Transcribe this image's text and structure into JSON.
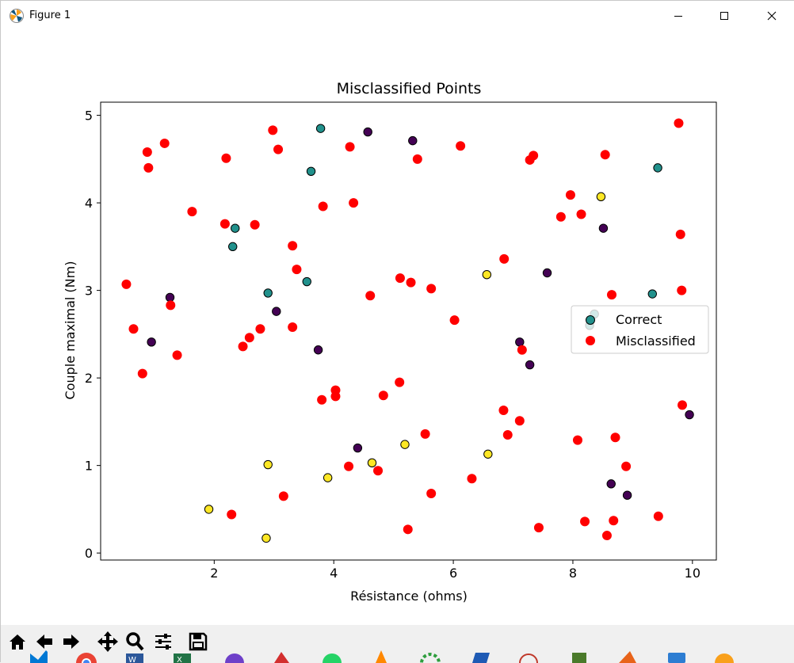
{
  "window": {
    "title": "Figure 1",
    "icon": "matplotlib-logo-icon"
  },
  "toolbar": {
    "items": [
      "home-icon",
      "back-icon",
      "forward-icon",
      "pan-icon",
      "zoom-icon",
      "configure-subplots-icon",
      "save-icon"
    ]
  },
  "chart_data": {
    "type": "scatter",
    "title": "Misclassified Points",
    "xlabel": "Résistance (ohms)",
    "ylabel": "Couple maximal (Nm)",
    "xlim": [
      0.1,
      10.4
    ],
    "ylim": [
      -0.08,
      5.15
    ],
    "xticks": [
      2,
      4,
      6,
      8,
      10
    ],
    "yticks": [
      0,
      1,
      2,
      3,
      4,
      5
    ],
    "grid": false,
    "legend_position": "right",
    "legend": [
      {
        "label": "Correct",
        "color": "#21918c"
      },
      {
        "label": "Misclassified",
        "color": "#ff0000"
      }
    ],
    "class_colors": {
      "purple": "#440154",
      "teal": "#21918c",
      "yellow": "#fde725"
    },
    "series": [
      {
        "name": "Correct",
        "points": [
          {
            "x": 2.35,
            "y": 3.71,
            "c": "teal"
          },
          {
            "x": 2.31,
            "y": 3.5,
            "c": "teal"
          },
          {
            "x": 3.78,
            "y": 4.85,
            "c": "teal"
          },
          {
            "x": 3.62,
            "y": 4.36,
            "c": "teal"
          },
          {
            "x": 2.9,
            "y": 2.97,
            "c": "teal"
          },
          {
            "x": 3.55,
            "y": 3.1,
            "c": "teal"
          },
          {
            "x": 9.42,
            "y": 4.4,
            "c": "teal"
          },
          {
            "x": 9.33,
            "y": 2.96,
            "c": "teal"
          },
          {
            "x": 8.28,
            "y": 2.6,
            "c": "teal"
          },
          {
            "x": 8.36,
            "y": 2.73,
            "c": "teal"
          },
          {
            "x": 4.57,
            "y": 4.81,
            "c": "purple"
          },
          {
            "x": 5.32,
            "y": 4.71,
            "c": "purple"
          },
          {
            "x": 8.51,
            "y": 3.71,
            "c": "purple"
          },
          {
            "x": 7.57,
            "y": 3.2,
            "c": "purple"
          },
          {
            "x": 1.26,
            "y": 2.92,
            "c": "purple"
          },
          {
            "x": 0.95,
            "y": 2.41,
            "c": "purple"
          },
          {
            "x": 3.04,
            "y": 2.76,
            "c": "purple"
          },
          {
            "x": 3.74,
            "y": 2.32,
            "c": "purple"
          },
          {
            "x": 7.11,
            "y": 2.41,
            "c": "purple"
          },
          {
            "x": 7.28,
            "y": 2.15,
            "c": "purple"
          },
          {
            "x": 9.95,
            "y": 1.58,
            "c": "purple"
          },
          {
            "x": 4.4,
            "y": 1.2,
            "c": "purple"
          },
          {
            "x": 8.64,
            "y": 0.79,
            "c": "purple"
          },
          {
            "x": 8.91,
            "y": 0.66,
            "c": "purple"
          },
          {
            "x": 8.47,
            "y": 4.07,
            "c": "yellow"
          },
          {
            "x": 6.56,
            "y": 3.18,
            "c": "yellow"
          },
          {
            "x": 5.19,
            "y": 1.24,
            "c": "yellow"
          },
          {
            "x": 4.64,
            "y": 1.03,
            "c": "yellow"
          },
          {
            "x": 6.58,
            "y": 1.13,
            "c": "yellow"
          },
          {
            "x": 2.9,
            "y": 1.01,
            "c": "yellow"
          },
          {
            "x": 3.9,
            "y": 0.86,
            "c": "yellow"
          },
          {
            "x": 1.91,
            "y": 0.5,
            "c": "yellow"
          },
          {
            "x": 2.87,
            "y": 0.17,
            "c": "yellow"
          }
        ]
      },
      {
        "name": "Misclassified",
        "points": [
          {
            "x": 0.88,
            "y": 4.58
          },
          {
            "x": 1.17,
            "y": 4.68
          },
          {
            "x": 0.9,
            "y": 4.4
          },
          {
            "x": 2.2,
            "y": 4.51
          },
          {
            "x": 2.98,
            "y": 4.83
          },
          {
            "x": 3.07,
            "y": 4.61
          },
          {
            "x": 4.27,
            "y": 4.64
          },
          {
            "x": 5.4,
            "y": 4.5
          },
          {
            "x": 6.12,
            "y": 4.65
          },
          {
            "x": 7.34,
            "y": 4.54
          },
          {
            "x": 7.28,
            "y": 4.49
          },
          {
            "x": 8.54,
            "y": 4.55
          },
          {
            "x": 9.77,
            "y": 4.91
          },
          {
            "x": 1.63,
            "y": 3.9
          },
          {
            "x": 2.18,
            "y": 3.76
          },
          {
            "x": 2.68,
            "y": 3.75
          },
          {
            "x": 3.82,
            "y": 3.96
          },
          {
            "x": 4.33,
            "y": 4.0
          },
          {
            "x": 7.96,
            "y": 4.09
          },
          {
            "x": 7.8,
            "y": 3.84
          },
          {
            "x": 8.14,
            "y": 3.87
          },
          {
            "x": 9.8,
            "y": 3.64
          },
          {
            "x": 3.31,
            "y": 3.51
          },
          {
            "x": 3.38,
            "y": 3.24
          },
          {
            "x": 6.85,
            "y": 3.36
          },
          {
            "x": 0.53,
            "y": 3.07
          },
          {
            "x": 5.11,
            "y": 3.14
          },
          {
            "x": 5.29,
            "y": 3.09
          },
          {
            "x": 5.63,
            "y": 3.02
          },
          {
            "x": 9.82,
            "y": 3.0
          },
          {
            "x": 4.61,
            "y": 2.94
          },
          {
            "x": 1.27,
            "y": 2.83
          },
          {
            "x": 8.65,
            "y": 2.95
          },
          {
            "x": 6.02,
            "y": 2.66
          },
          {
            "x": 0.65,
            "y": 2.56
          },
          {
            "x": 2.77,
            "y": 2.56
          },
          {
            "x": 3.31,
            "y": 2.58
          },
          {
            "x": 2.59,
            "y": 2.46
          },
          {
            "x": 2.48,
            "y": 2.36
          },
          {
            "x": 7.15,
            "y": 2.32
          },
          {
            "x": 1.38,
            "y": 2.26
          },
          {
            "x": 0.8,
            "y": 2.05
          },
          {
            "x": 5.1,
            "y": 1.95
          },
          {
            "x": 4.03,
            "y": 1.86
          },
          {
            "x": 4.03,
            "y": 1.79
          },
          {
            "x": 4.83,
            "y": 1.8
          },
          {
            "x": 3.8,
            "y": 1.75
          },
          {
            "x": 9.83,
            "y": 1.69
          },
          {
            "x": 6.84,
            "y": 1.63
          },
          {
            "x": 7.11,
            "y": 1.51
          },
          {
            "x": 5.53,
            "y": 1.36
          },
          {
            "x": 6.91,
            "y": 1.35
          },
          {
            "x": 8.08,
            "y": 1.29
          },
          {
            "x": 8.71,
            "y": 1.32
          },
          {
            "x": 4.25,
            "y": 0.99
          },
          {
            "x": 4.74,
            "y": 0.94
          },
          {
            "x": 8.89,
            "y": 0.99
          },
          {
            "x": 6.31,
            "y": 0.85
          },
          {
            "x": 3.16,
            "y": 0.65
          },
          {
            "x": 5.63,
            "y": 0.68
          },
          {
            "x": 2.29,
            "y": 0.44
          },
          {
            "x": 9.43,
            "y": 0.42
          },
          {
            "x": 8.68,
            "y": 0.37
          },
          {
            "x": 8.2,
            "y": 0.36
          },
          {
            "x": 7.43,
            "y": 0.29
          },
          {
            "x": 5.24,
            "y": 0.27
          },
          {
            "x": 8.57,
            "y": 0.2
          }
        ]
      }
    ]
  }
}
